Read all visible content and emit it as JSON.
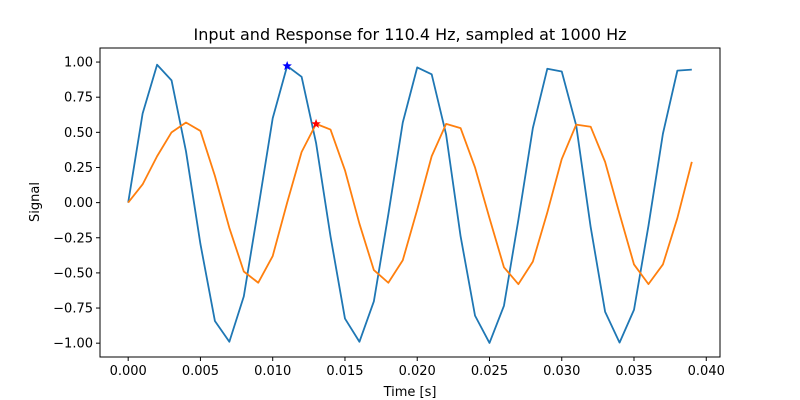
{
  "chart_data": {
    "type": "line",
    "title": "Input and Response for 110.4 Hz, sampled at 1000  Hz",
    "xlabel": "Time [s]",
    "ylabel": "Signal",
    "xlim": [
      -0.00195,
      0.04095
    ],
    "ylim": [
      -1.0983,
      1.1
    ],
    "grid": false,
    "legend": "none",
    "x_ticks": [
      0.0,
      0.005,
      0.01,
      0.015,
      0.02,
      0.025,
      0.03,
      0.035,
      0.04
    ],
    "x_tick_labels": [
      "0.000",
      "0.005",
      "0.010",
      "0.015",
      "0.020",
      "0.025",
      "0.030",
      "0.035",
      "0.040"
    ],
    "y_ticks": [
      1.0,
      0.75,
      0.5,
      0.25,
      0.0,
      -0.25,
      -0.5,
      -0.75,
      -1.0
    ],
    "y_tick_labels": [
      "1.00",
      "0.75",
      "0.50",
      "0.25",
      "0.00",
      "−0.25",
      "−0.50",
      "−0.75",
      "−1.00"
    ],
    "x": [
      0.0,
      0.001,
      0.002,
      0.003,
      0.004,
      0.005,
      0.006,
      0.007,
      0.008,
      0.009,
      0.01,
      0.011,
      0.012,
      0.013,
      0.014,
      0.015,
      0.016,
      0.017,
      0.018,
      0.019,
      0.02,
      0.021,
      0.022,
      0.023,
      0.024,
      0.025,
      0.026,
      0.027,
      0.028,
      0.029,
      0.03,
      0.031,
      0.032,
      0.033,
      0.034,
      0.035,
      0.036,
      0.037,
      0.038,
      0.039
    ],
    "series": [
      {
        "color": "#1f77b4",
        "values": [
          0.0,
          0.634,
          0.981,
          0.87,
          0.365,
          -0.295,
          -0.842,
          -0.99,
          -0.667,
          -0.041,
          0.6,
          0.972,
          0.895,
          0.425,
          -0.24,
          -0.825,
          -0.99,
          -0.702,
          -0.084,
          0.57,
          0.962,
          0.913,
          0.484,
          -0.239,
          -0.804,
          -0.998,
          -0.734,
          -0.122,
          0.53,
          0.952,
          0.933,
          0.549,
          -0.173,
          -0.776,
          -0.996,
          -0.762,
          -0.165,
          0.49,
          0.939,
          0.946
        ]
      },
      {
        "color": "#ff7f0e",
        "values": [
          0.0,
          0.13,
          0.33,
          0.5,
          0.57,
          0.51,
          0.19,
          -0.18,
          -0.49,
          -0.57,
          -0.38,
          0.0,
          0.36,
          0.56,
          0.52,
          0.23,
          -0.15,
          -0.48,
          -0.57,
          -0.41,
          -0.05,
          0.33,
          0.56,
          0.53,
          0.25,
          -0.11,
          -0.46,
          -0.58,
          -0.42,
          -0.07,
          0.31,
          0.555,
          0.54,
          0.29,
          -0.08,
          -0.44,
          -0.58,
          -0.44,
          -0.11,
          0.29
        ]
      }
    ],
    "markers": [
      {
        "x": 0.011,
        "y": 0.972,
        "color": "#0000ff",
        "shape": "star"
      },
      {
        "x": 0.013,
        "y": 0.56,
        "color": "#ff0000",
        "shape": "star"
      }
    ]
  }
}
